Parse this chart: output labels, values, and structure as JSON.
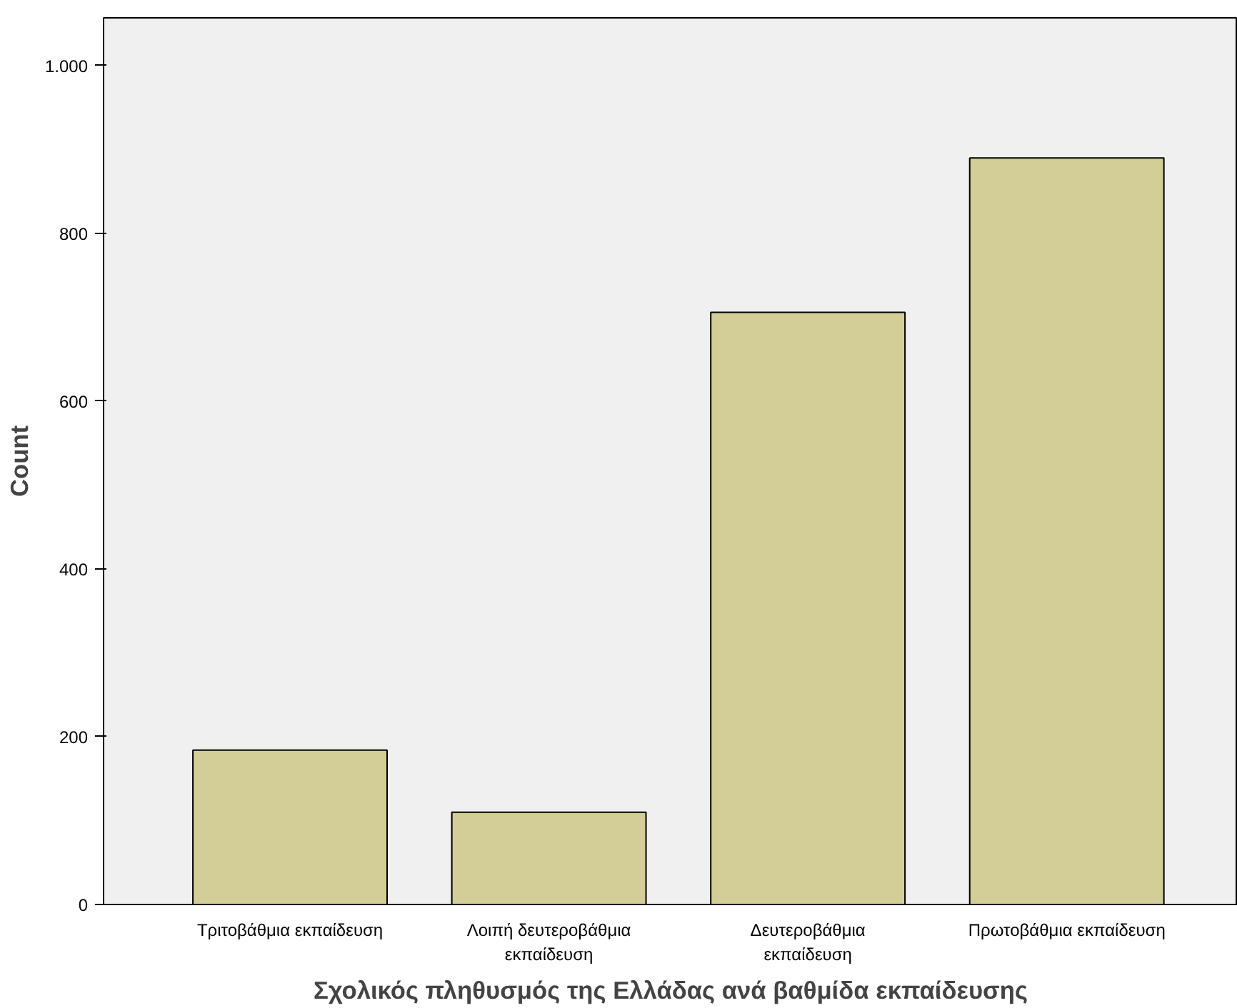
{
  "chart_data": {
    "type": "bar",
    "xlabel": "Σχολικός πληθυσμός της Ελλάδας ανά βαθμίδα εκπαίδευσης",
    "ylabel": "Count",
    "categories": [
      "Τριτοβάθμια εκπαίδευση",
      "Λοιπή δευτεροβάθμια\nεκπαίδευση",
      "Δευτεροβάθμια\nεκπαίδευση",
      "Πρωτοβάθμια εκπαίδευση"
    ],
    "values": [
      184,
      110,
      706,
      890
    ],
    "color": "#d3ce97",
    "ylim": [
      0,
      1057
    ],
    "yticks": [
      0,
      200,
      400,
      600,
      800,
      {
        "value": 1000,
        "label": "1.000"
      }
    ],
    "grid": false
  }
}
